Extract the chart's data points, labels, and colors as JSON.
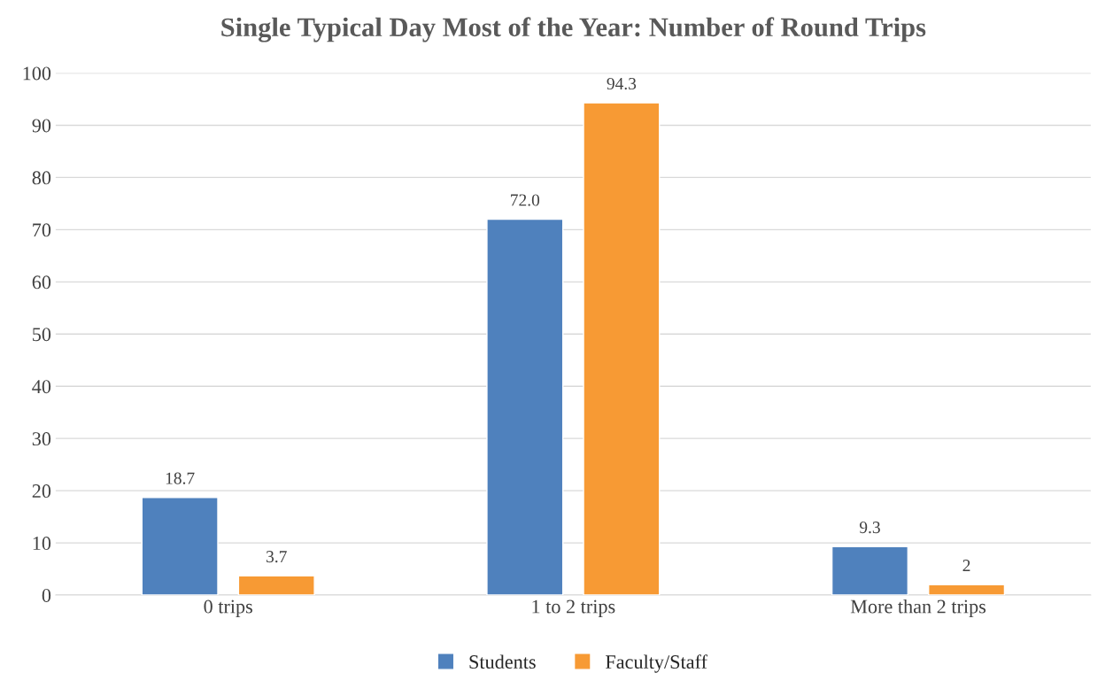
{
  "chart_data": {
    "type": "bar",
    "title": "Single Typical Day Most of the Year: Number of Round Trips",
    "categories": [
      "0 trips",
      "1 to 2 trips",
      "More than 2 trips"
    ],
    "series": [
      {
        "name": "Students",
        "color": "#4f81bd",
        "values": [
          18.7,
          72.0,
          9.3
        ],
        "value_labels": [
          "18.7",
          "72.0",
          "9.3"
        ]
      },
      {
        "name": "Faculty/Staff",
        "color": "#f79a34",
        "values": [
          3.7,
          94.3,
          2
        ],
        "value_labels": [
          "3.7",
          "94.3",
          "2"
        ]
      }
    ],
    "ylim": [
      0,
      100
    ],
    "yticks": [
      0,
      10,
      20,
      30,
      40,
      50,
      60,
      70,
      80,
      90,
      100
    ],
    "grid": "y",
    "legend": "bottom"
  }
}
